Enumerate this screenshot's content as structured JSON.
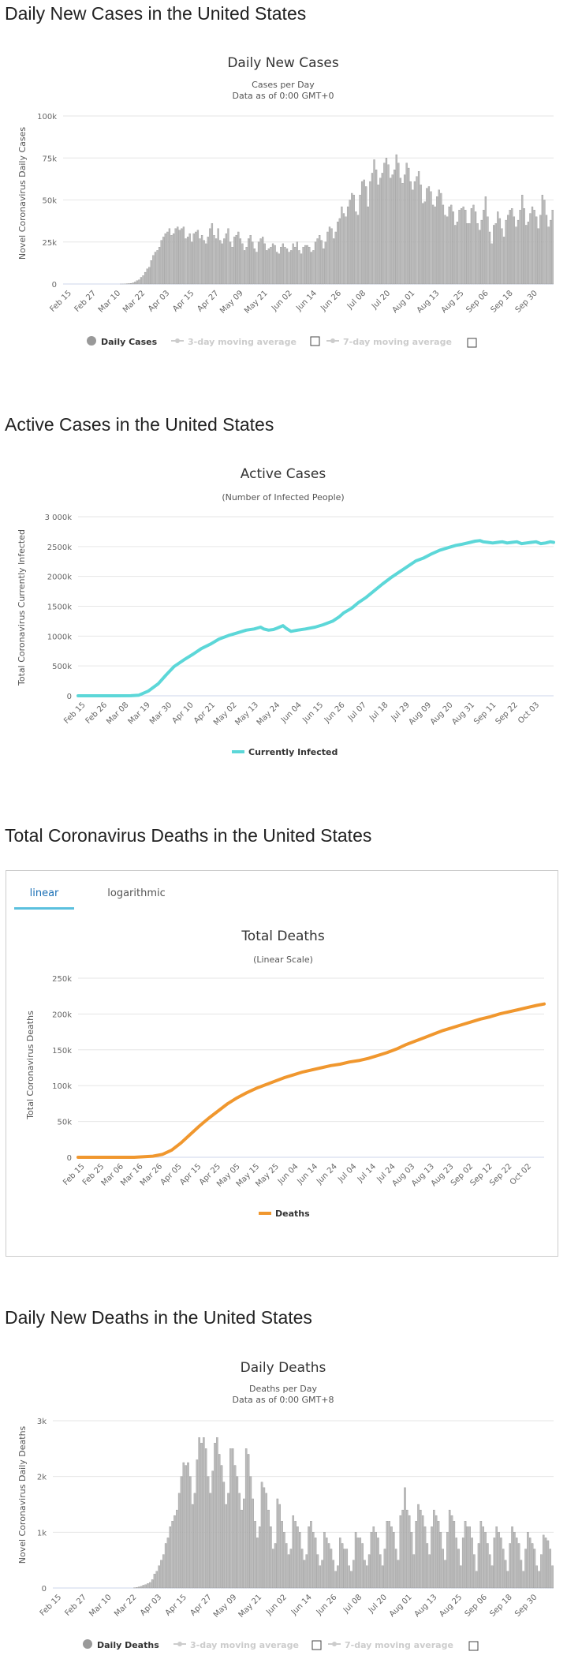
{
  "sections": [
    {
      "title": "Daily New Cases in the United States"
    },
    {
      "title": "Active Cases in the United States"
    },
    {
      "title": "Total Coronavirus Deaths in the United States"
    },
    {
      "title": "Daily New Deaths in the United States"
    }
  ],
  "tabs": {
    "linear": "linear",
    "log": "logarithmic"
  },
  "colors": {
    "bar": "#bbbbbb",
    "bar_stroke": "#888888",
    "active": "#5cd7d8",
    "deaths": "#f0972e",
    "grid": "#e6e6e6"
  },
  "chart_data": [
    {
      "type": "bar",
      "title": "Daily New Cases",
      "subtitle1": "Cases per Day",
      "subtitle2": "Data as of 0:00 GMT+0",
      "ylabel": "Novel Coronavirus Daily Cases",
      "ylim": [
        0,
        100000
      ],
      "yticks": [
        0,
        25000,
        50000,
        75000,
        100000
      ],
      "ytick_labels": [
        "0",
        "25k",
        "50k",
        "75k",
        "100k"
      ],
      "xtick_labels": [
        "Feb 15",
        "Feb 27",
        "Mar 10",
        "Mar 22",
        "Apr 03",
        "Apr 15",
        "Apr 27",
        "May 09",
        "May 21",
        "Jun 02",
        "Jun 14",
        "Jun 26",
        "Jul 08",
        "Jul 20",
        "Aug 01",
        "Aug 13",
        "Aug 25",
        "Sep 06",
        "Sep 18",
        "Sep 30"
      ],
      "legend": [
        "Daily Cases",
        "3-day moving average",
        "7-day moving average"
      ],
      "start": "Feb 15",
      "values": [
        0,
        0,
        0,
        0,
        0,
        0,
        0,
        0,
        0,
        0,
        0,
        0,
        0,
        0,
        0,
        0,
        0,
        0,
        0,
        0,
        0,
        0,
        0,
        0,
        0,
        0,
        0,
        0,
        10,
        20,
        60,
        100,
        300,
        400,
        700,
        1200,
        2000,
        2500,
        4000,
        5000,
        7000,
        9000,
        10000,
        14000,
        17000,
        19000,
        20000,
        22000,
        26000,
        28000,
        30000,
        31000,
        33000,
        29000,
        30000,
        33000,
        34000,
        32000,
        33000,
        34000,
        27000,
        28000,
        30000,
        25000,
        30000,
        31000,
        32000,
        27000,
        29000,
        26000,
        24000,
        28000,
        33000,
        36000,
        29000,
        27000,
        33000,
        26000,
        24000,
        27000,
        30000,
        33000,
        25000,
        22000,
        28000,
        29000,
        31000,
        27000,
        24000,
        20000,
        22000,
        27000,
        29000,
        25000,
        21000,
        19000,
        25000,
        27000,
        28000,
        24000,
        20000,
        21000,
        22000,
        24000,
        23000,
        19000,
        18000,
        22000,
        24000,
        22000,
        21000,
        19000,
        20000,
        24000,
        22000,
        25000,
        20000,
        18000,
        22000,
        23000,
        23000,
        22000,
        19000,
        20000,
        25000,
        27000,
        29000,
        26000,
        21000,
        25000,
        31000,
        34000,
        33000,
        27000,
        31000,
        37000,
        39000,
        46000,
        42000,
        40000,
        46000,
        50000,
        54000,
        53000,
        43000,
        41000,
        53000,
        61000,
        62000,
        58000,
        46000,
        61000,
        66000,
        74000,
        68000,
        59000,
        63000,
        66000,
        72000,
        75000,
        71000,
        63000,
        65000,
        68000,
        77000,
        72000,
        63000,
        60000,
        65000,
        72000,
        69000,
        61000,
        56000,
        61000,
        64000,
        67000,
        59000,
        48000,
        49000,
        57000,
        58000,
        55000,
        47000,
        46000,
        52000,
        56000,
        54000,
        47000,
        41000,
        40000,
        46000,
        47000,
        43000,
        35000,
        37000,
        44000,
        45000,
        46000,
        44000,
        36000,
        36000,
        45000,
        47000,
        43000,
        36000,
        32000,
        38000,
        44000,
        52000,
        40000,
        31000,
        24000,
        35000,
        36000,
        43000,
        39000,
        33000,
        28000,
        38000,
        41000,
        44000,
        45000,
        40000,
        34000,
        38000,
        44000,
        53000,
        45000,
        35000,
        37000,
        42000,
        46000,
        44000,
        40000,
        33000,
        41000,
        53000,
        50000,
        41000,
        34000,
        38000,
        44000
      ]
    },
    {
      "type": "line",
      "title": "Active Cases",
      "subtitle1": "(Number of Infected People)",
      "ylabel": "Total Coronavirus Currently Infected",
      "ylim": [
        0,
        3000000
      ],
      "yticks": [
        0,
        500000,
        1000000,
        1500000,
        2000000,
        2500000,
        3000000
      ],
      "ytick_labels": [
        "0",
        "500k",
        "1000k",
        "1500k",
        "2000k",
        "2500k",
        "3 000k"
      ],
      "xtick_labels": [
        "Feb 15",
        "Feb 26",
        "Mar 08",
        "Mar 19",
        "Mar 30",
        "Apr 10",
        "Apr 21",
        "May 02",
        "May 13",
        "May 24",
        "Jun 04",
        "Jun 15",
        "Jun 26",
        "Jul 07",
        "Jul 18",
        "Jul 29",
        "Aug 09",
        "Aug 20",
        "Aug 31",
        "Sep 11",
        "Sep 22",
        "Oct 03"
      ],
      "legend": [
        "Currently Infected"
      ],
      "points": [
        [
          0,
          0
        ],
        [
          11,
          0
        ],
        [
          22,
          0
        ],
        [
          33,
          1000
        ],
        [
          38,
          10000
        ],
        [
          44,
          80000
        ],
        [
          50,
          200000
        ],
        [
          55,
          350000
        ],
        [
          60,
          490000
        ],
        [
          66,
          600000
        ],
        [
          72,
          700000
        ],
        [
          77,
          790000
        ],
        [
          83,
          870000
        ],
        [
          88,
          950000
        ],
        [
          94,
          1010000
        ],
        [
          99,
          1050000
        ],
        [
          105,
          1100000
        ],
        [
          110,
          1120000
        ],
        [
          114,
          1150000
        ],
        [
          116,
          1120000
        ],
        [
          119,
          1100000
        ],
        [
          122,
          1110000
        ],
        [
          124,
          1130000
        ],
        [
          128,
          1175000
        ],
        [
          130,
          1130000
        ],
        [
          133,
          1080000
        ],
        [
          137,
          1100000
        ],
        [
          142,
          1120000
        ],
        [
          148,
          1150000
        ],
        [
          153,
          1190000
        ],
        [
          159,
          1250000
        ],
        [
          163,
          1320000
        ],
        [
          166,
          1390000
        ],
        [
          171,
          1470000
        ],
        [
          175,
          1560000
        ],
        [
          180,
          1650000
        ],
        [
          185,
          1760000
        ],
        [
          190,
          1870000
        ],
        [
          196,
          1990000
        ],
        [
          201,
          2080000
        ],
        [
          206,
          2170000
        ],
        [
          211,
          2260000
        ],
        [
          216,
          2310000
        ],
        [
          221,
          2380000
        ],
        [
          226,
          2440000
        ],
        [
          231,
          2480000
        ],
        [
          236,
          2520000
        ],
        [
          240,
          2540000
        ],
        [
          245,
          2570000
        ],
        [
          248,
          2590000
        ],
        [
          251,
          2600000
        ],
        [
          253,
          2580000
        ],
        [
          256,
          2570000
        ],
        [
          259,
          2560000
        ],
        [
          262,
          2570000
        ],
        [
          265,
          2580000
        ],
        [
          268,
          2560000
        ],
        [
          271,
          2570000
        ],
        [
          274,
          2580000
        ],
        [
          277,
          2550000
        ],
        [
          280,
          2560000
        ],
        [
          283,
          2570000
        ],
        [
          286,
          2580000
        ],
        [
          289,
          2550000
        ],
        [
          292,
          2560000
        ],
        [
          295,
          2580000
        ],
        [
          297,
          2570000
        ]
      ],
      "xmax": 297
    },
    {
      "type": "line",
      "title": "Total Deaths",
      "subtitle1": "(Linear Scale)",
      "ylabel": "Total Coronavirus Deaths",
      "ylim": [
        0,
        250000
      ],
      "yticks": [
        0,
        50000,
        100000,
        150000,
        200000,
        250000
      ],
      "ytick_labels": [
        "0",
        "50k",
        "100k",
        "150k",
        "200k",
        "250k"
      ],
      "xtick_labels": [
        "Feb 15",
        "Feb 25",
        "Mar 06",
        "Mar 16",
        "Mar 26",
        "Apr 05",
        "Apr 15",
        "Apr 25",
        "May 05",
        "May 15",
        "May 25",
        "Jun 04",
        "Jun 14",
        "Jun 24",
        "Jul 04",
        "Jul 14",
        "Jul 24",
        "Aug 03",
        "Aug 13",
        "Aug 23",
        "Sep 02",
        "Sep 12",
        "Sep 22",
        "Oct 02"
      ],
      "legend": [
        "Deaths"
      ],
      "points": [
        [
          0,
          0
        ],
        [
          10,
          0
        ],
        [
          20,
          0
        ],
        [
          30,
          50
        ],
        [
          40,
          1500
        ],
        [
          45,
          4000
        ],
        [
          50,
          10000
        ],
        [
          55,
          20000
        ],
        [
          60,
          32000
        ],
        [
          65,
          44000
        ],
        [
          70,
          55000
        ],
        [
          75,
          65000
        ],
        [
          80,
          75000
        ],
        [
          85,
          83000
        ],
        [
          90,
          90000
        ],
        [
          95,
          96000
        ],
        [
          100,
          101000
        ],
        [
          105,
          106000
        ],
        [
          110,
          111000
        ],
        [
          115,
          115000
        ],
        [
          120,
          119000
        ],
        [
          125,
          122000
        ],
        [
          130,
          125000
        ],
        [
          135,
          128000
        ],
        [
          140,
          130000
        ],
        [
          145,
          133000
        ],
        [
          150,
          135000
        ],
        [
          155,
          138000
        ],
        [
          160,
          142000
        ],
        [
          165,
          146000
        ],
        [
          170,
          151000
        ],
        [
          175,
          157000
        ],
        [
          180,
          162000
        ],
        [
          185,
          167000
        ],
        [
          190,
          172000
        ],
        [
          195,
          177000
        ],
        [
          200,
          181000
        ],
        [
          205,
          185000
        ],
        [
          210,
          189000
        ],
        [
          215,
          193000
        ],
        [
          220,
          196000
        ],
        [
          225,
          200000
        ],
        [
          230,
          203000
        ],
        [
          235,
          206000
        ],
        [
          240,
          209000
        ],
        [
          245,
          212000
        ],
        [
          249,
          214000
        ]
      ],
      "xmax": 249
    },
    {
      "type": "bar",
      "title": "Daily Deaths",
      "subtitle1": "Deaths per Day",
      "subtitle2": "Data as of 0:00 GMT+8",
      "ylabel": "Novel Coronavirus Daily Deaths",
      "ylim": [
        0,
        3000
      ],
      "yticks": [
        0,
        1000,
        2000,
        3000
      ],
      "ytick_labels": [
        "0",
        "1k",
        "2k",
        "3k"
      ],
      "xtick_labels": [
        "Feb 15",
        "Feb 27",
        "Mar 10",
        "Mar 22",
        "Apr 03",
        "Apr 15",
        "Apr 27",
        "May 09",
        "May 21",
        "Jun 02",
        "Jun 14",
        "Jun 26",
        "Jul 08",
        "Jul 20",
        "Aug 01",
        "Aug 13",
        "Aug 25",
        "Sep 06",
        "Sep 18",
        "Sep 30"
      ],
      "legend": [
        "Daily Deaths",
        "3-day moving average",
        "7-day moving average"
      ],
      "start": "Feb 15",
      "values": [
        0,
        0,
        0,
        0,
        0,
        0,
        0,
        0,
        0,
        0,
        0,
        0,
        0,
        0,
        0,
        0,
        0,
        0,
        0,
        0,
        0,
        0,
        0,
        0,
        0,
        0,
        0,
        0,
        0,
        0,
        0,
        0,
        0,
        0,
        0,
        0,
        5,
        10,
        20,
        30,
        50,
        60,
        80,
        100,
        150,
        250,
        300,
        400,
        500,
        600,
        800,
        900,
        1100,
        1200,
        1300,
        1400,
        1700,
        2000,
        2250,
        2200,
        2250,
        2000,
        1500,
        1700,
        2300,
        2700,
        2600,
        2700,
        2500,
        2000,
        1700,
        2100,
        2600,
        2700,
        2400,
        2200,
        1900,
        1500,
        1700,
        2500,
        2500,
        2200,
        2000,
        1700,
        1400,
        1600,
        2500,
        2400,
        2000,
        1600,
        1200,
        900,
        1100,
        1900,
        1800,
        1700,
        1400,
        1100,
        700,
        800,
        1600,
        1500,
        1200,
        1000,
        800,
        600,
        700,
        1300,
        1200,
        1100,
        1000,
        700,
        500,
        600,
        1100,
        1200,
        1000,
        900,
        600,
        400,
        500,
        1000,
        900,
        800,
        700,
        500,
        300,
        400,
        900,
        800,
        700,
        700,
        400,
        300,
        500,
        1000,
        900,
        900,
        800,
        500,
        400,
        600,
        1000,
        1100,
        1000,
        900,
        600,
        400,
        700,
        1200,
        1200,
        1100,
        1000,
        700,
        500,
        1300,
        1400,
        1800,
        1400,
        1300,
        1000,
        600,
        1200,
        1500,
        1400,
        1300,
        1100,
        800,
        600,
        1100,
        1400,
        1300,
        1200,
        1000,
        700,
        500,
        1000,
        1400,
        1300,
        1200,
        900,
        700,
        400,
        900,
        1200,
        1100,
        1100,
        900,
        600,
        300,
        800,
        1200,
        1100,
        1000,
        800,
        600,
        400,
        900,
        1100,
        1000,
        900,
        700,
        500,
        300,
        800,
        1100,
        1000,
        900,
        800,
        500,
        300,
        700,
        1000,
        900,
        800,
        700,
        400,
        300,
        600,
        950,
        900,
        850,
        700,
        400
      ]
    }
  ]
}
